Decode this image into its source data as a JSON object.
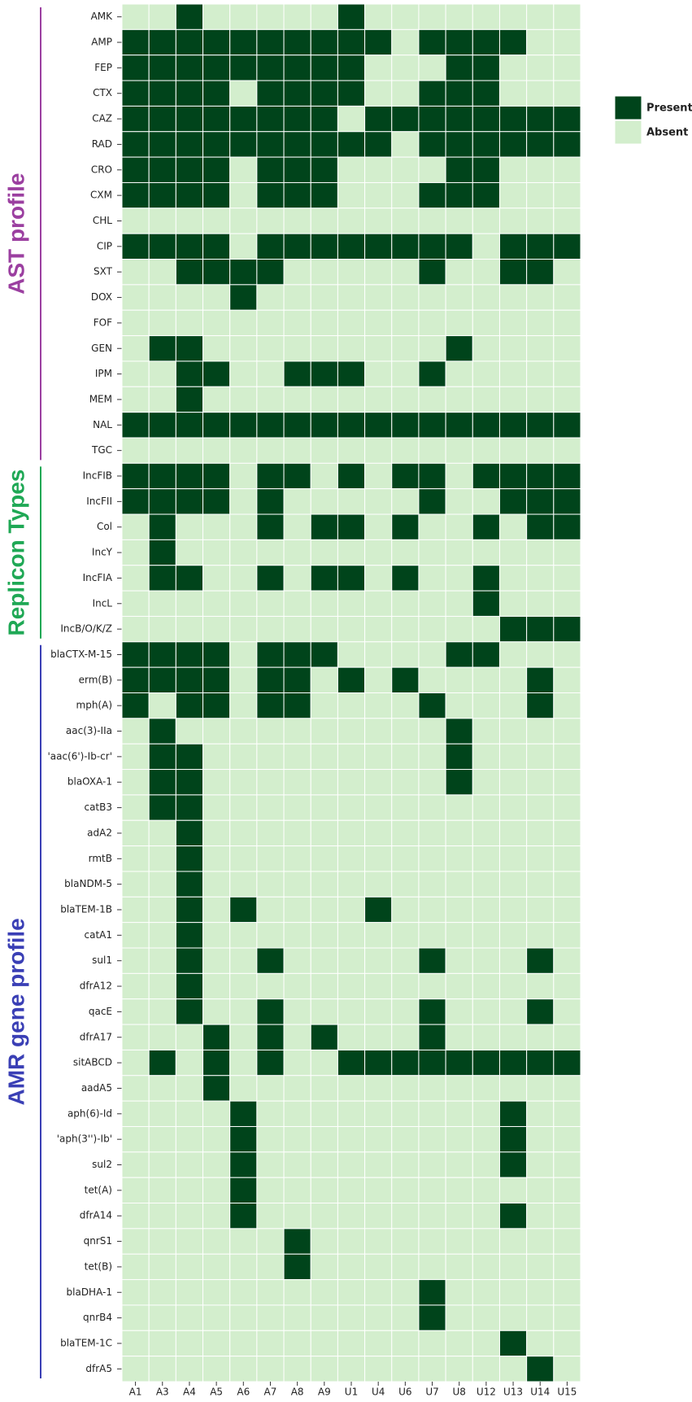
{
  "chart_data": {
    "type": "heatmap",
    "categories": [
      "A1",
      "A3",
      "A4",
      "A5",
      "A6",
      "A7",
      "A8",
      "A9",
      "U1",
      "U4",
      "U6",
      "U7",
      "U8",
      "U12",
      "U13",
      "U14",
      "U15"
    ],
    "legend": [
      {
        "label": "Present",
        "value": 1,
        "color": "#00441b"
      },
      {
        "label": "Absent",
        "value": 0,
        "color": "#d3eecd"
      }
    ],
    "groups": [
      {
        "name": "AST profile",
        "color": "#9b3fa0",
        "rows": [
          "AMK",
          "AMP",
          "FEP",
          "CTX",
          "CAZ",
          "RAD",
          "CRO",
          "CXM",
          "CHL",
          "CIP",
          "SXT",
          "DOX",
          "FOF",
          "GEN",
          "IPM",
          "MEM",
          "NAL",
          "TGC"
        ],
        "values": [
          [
            0,
            0,
            1,
            0,
            0,
            0,
            0,
            0,
            1,
            0,
            0,
            0,
            0,
            0,
            0,
            0,
            0
          ],
          [
            1,
            1,
            1,
            1,
            1,
            1,
            1,
            1,
            1,
            1,
            0,
            1,
            1,
            1,
            1,
            0,
            0
          ],
          [
            1,
            1,
            1,
            1,
            1,
            1,
            1,
            1,
            1,
            0,
            0,
            0,
            1,
            1,
            0,
            0,
            0
          ],
          [
            1,
            1,
            1,
            1,
            0,
            1,
            1,
            1,
            1,
            0,
            0,
            1,
            1,
            1,
            0,
            0,
            0
          ],
          [
            1,
            1,
            1,
            1,
            1,
            1,
            1,
            1,
            0,
            1,
            1,
            1,
            1,
            1,
            1,
            1,
            1
          ],
          [
            1,
            1,
            1,
            1,
            1,
            1,
            1,
            1,
            1,
            1,
            0,
            1,
            1,
            1,
            1,
            1,
            1
          ],
          [
            1,
            1,
            1,
            1,
            0,
            1,
            1,
            1,
            0,
            0,
            0,
            0,
            1,
            1,
            0,
            0,
            0
          ],
          [
            1,
            1,
            1,
            1,
            0,
            1,
            1,
            1,
            0,
            0,
            0,
            1,
            1,
            1,
            0,
            0,
            0
          ],
          [
            0,
            0,
            0,
            0,
            0,
            0,
            0,
            0,
            0,
            0,
            0,
            0,
            0,
            0,
            0,
            0,
            0
          ],
          [
            1,
            1,
            1,
            1,
            0,
            1,
            1,
            1,
            1,
            1,
            1,
            1,
            1,
            0,
            1,
            1,
            1
          ],
          [
            0,
            0,
            1,
            1,
            1,
            1,
            0,
            0,
            0,
            0,
            0,
            1,
            0,
            0,
            1,
            1,
            0
          ],
          [
            0,
            0,
            0,
            0,
            1,
            0,
            0,
            0,
            0,
            0,
            0,
            0,
            0,
            0,
            0,
            0,
            0
          ],
          [
            0,
            0,
            0,
            0,
            0,
            0,
            0,
            0,
            0,
            0,
            0,
            0,
            0,
            0,
            0,
            0,
            0
          ],
          [
            0,
            1,
            1,
            0,
            0,
            0,
            0,
            0,
            0,
            0,
            0,
            0,
            1,
            0,
            0,
            0,
            0
          ],
          [
            0,
            0,
            1,
            1,
            0,
            0,
            1,
            1,
            1,
            0,
            0,
            1,
            0,
            0,
            0,
            0,
            0
          ],
          [
            0,
            0,
            1,
            0,
            0,
            0,
            0,
            0,
            0,
            0,
            0,
            0,
            0,
            0,
            0,
            0,
            0
          ],
          [
            1,
            1,
            1,
            1,
            1,
            1,
            1,
            1,
            1,
            1,
            1,
            1,
            1,
            1,
            1,
            1,
            1
          ],
          [
            0,
            0,
            0,
            0,
            0,
            0,
            0,
            0,
            0,
            0,
            0,
            0,
            0,
            0,
            0,
            0,
            0
          ]
        ]
      },
      {
        "name": "Replicon Types",
        "color": "#1fa855",
        "rows": [
          "IncFIB",
          "IncFII",
          "Col",
          "IncY",
          "IncFIA",
          "IncL",
          "IncB/O/K/Z"
        ],
        "values": [
          [
            1,
            1,
            1,
            1,
            0,
            1,
            1,
            0,
            1,
            0,
            1,
            1,
            0,
            1,
            1,
            1,
            1
          ],
          [
            1,
            1,
            1,
            1,
            0,
            1,
            0,
            0,
            0,
            0,
            0,
            1,
            0,
            0,
            1,
            1,
            1
          ],
          [
            0,
            1,
            0,
            0,
            0,
            1,
            0,
            1,
            1,
            0,
            1,
            0,
            0,
            1,
            0,
            1,
            1
          ],
          [
            0,
            1,
            0,
            0,
            0,
            0,
            0,
            0,
            0,
            0,
            0,
            0,
            0,
            0,
            0,
            0,
            0
          ],
          [
            0,
            1,
            1,
            0,
            0,
            1,
            0,
            1,
            1,
            0,
            1,
            0,
            0,
            1,
            0,
            0,
            0
          ],
          [
            0,
            0,
            0,
            0,
            0,
            0,
            0,
            0,
            0,
            0,
            0,
            0,
            0,
            1,
            0,
            0,
            0
          ],
          [
            0,
            0,
            0,
            0,
            0,
            0,
            0,
            0,
            0,
            0,
            0,
            0,
            0,
            0,
            1,
            1,
            1
          ]
        ]
      },
      {
        "name": "AMR gene profile",
        "color": "#3a3fb5",
        "rows": [
          "blaCTX-M-15",
          "erm(B)",
          "mph(A)",
          "aac(3)-IIa",
          "'aac(6')-Ib-cr'",
          "blaOXA-1",
          "catB3",
          "adA2",
          "rmtB",
          "blaNDM-5",
          "blaTEM-1B",
          "catA1",
          "sul1",
          "dfrA12",
          "qacE",
          "dfrA17",
          "sitABCD",
          "aadA5",
          "aph(6)-Id",
          "'aph(3'')-Ib'",
          "sul2",
          "tet(A)",
          "dfrA14",
          "qnrS1",
          "tet(B)",
          "blaDHA-1",
          "qnrB4",
          "blaTEM-1C",
          "dfrA5"
        ],
        "values": [
          [
            1,
            1,
            1,
            1,
            0,
            1,
            1,
            1,
            0,
            0,
            0,
            0,
            1,
            1,
            0,
            0,
            0
          ],
          [
            1,
            1,
            1,
            1,
            0,
            1,
            1,
            0,
            1,
            0,
            1,
            0,
            0,
            0,
            0,
            1,
            0
          ],
          [
            1,
            0,
            1,
            1,
            0,
            1,
            1,
            0,
            0,
            0,
            0,
            1,
            0,
            0,
            0,
            1,
            0
          ],
          [
            0,
            1,
            0,
            0,
            0,
            0,
            0,
            0,
            0,
            0,
            0,
            0,
            1,
            0,
            0,
            0,
            0
          ],
          [
            0,
            1,
            1,
            0,
            0,
            0,
            0,
            0,
            0,
            0,
            0,
            0,
            1,
            0,
            0,
            0,
            0
          ],
          [
            0,
            1,
            1,
            0,
            0,
            0,
            0,
            0,
            0,
            0,
            0,
            0,
            1,
            0,
            0,
            0,
            0
          ],
          [
            0,
            1,
            1,
            0,
            0,
            0,
            0,
            0,
            0,
            0,
            0,
            0,
            0,
            0,
            0,
            0,
            0
          ],
          [
            0,
            0,
            1,
            0,
            0,
            0,
            0,
            0,
            0,
            0,
            0,
            0,
            0,
            0,
            0,
            0,
            0
          ],
          [
            0,
            0,
            1,
            0,
            0,
            0,
            0,
            0,
            0,
            0,
            0,
            0,
            0,
            0,
            0,
            0,
            0
          ],
          [
            0,
            0,
            1,
            0,
            0,
            0,
            0,
            0,
            0,
            0,
            0,
            0,
            0,
            0,
            0,
            0,
            0
          ],
          [
            0,
            0,
            1,
            0,
            1,
            0,
            0,
            0,
            0,
            1,
            0,
            0,
            0,
            0,
            0,
            0,
            0
          ],
          [
            0,
            0,
            1,
            0,
            0,
            0,
            0,
            0,
            0,
            0,
            0,
            0,
            0,
            0,
            0,
            0,
            0
          ],
          [
            0,
            0,
            1,
            0,
            0,
            1,
            0,
            0,
            0,
            0,
            0,
            1,
            0,
            0,
            0,
            1,
            0
          ],
          [
            0,
            0,
            1,
            0,
            0,
            0,
            0,
            0,
            0,
            0,
            0,
            0,
            0,
            0,
            0,
            0,
            0
          ],
          [
            0,
            0,
            1,
            0,
            0,
            1,
            0,
            0,
            0,
            0,
            0,
            1,
            0,
            0,
            0,
            1,
            0
          ],
          [
            0,
            0,
            0,
            1,
            0,
            1,
            0,
            1,
            0,
            0,
            0,
            1,
            0,
            0,
            0,
            0,
            0
          ],
          [
            0,
            1,
            0,
            1,
            0,
            1,
            0,
            0,
            1,
            1,
            1,
            1,
            1,
            1,
            1,
            1,
            1
          ],
          [
            0,
            0,
            0,
            1,
            0,
            0,
            0,
            0,
            0,
            0,
            0,
            0,
            0,
            0,
            0,
            0,
            0
          ],
          [
            0,
            0,
            0,
            0,
            1,
            0,
            0,
            0,
            0,
            0,
            0,
            0,
            0,
            0,
            1,
            0,
            0
          ],
          [
            0,
            0,
            0,
            0,
            1,
            0,
            0,
            0,
            0,
            0,
            0,
            0,
            0,
            0,
            1,
            0,
            0
          ],
          [
            0,
            0,
            0,
            0,
            1,
            0,
            0,
            0,
            0,
            0,
            0,
            0,
            0,
            0,
            1,
            0,
            0
          ],
          [
            0,
            0,
            0,
            0,
            1,
            0,
            0,
            0,
            0,
            0,
            0,
            0,
            0,
            0,
            0,
            0,
            0
          ],
          [
            0,
            0,
            0,
            0,
            1,
            0,
            0,
            0,
            0,
            0,
            0,
            0,
            0,
            0,
            1,
            0,
            0
          ],
          [
            0,
            0,
            0,
            0,
            0,
            0,
            1,
            0,
            0,
            0,
            0,
            0,
            0,
            0,
            0,
            0,
            0
          ],
          [
            0,
            0,
            0,
            0,
            0,
            0,
            1,
            0,
            0,
            0,
            0,
            0,
            0,
            0,
            0,
            0,
            0
          ],
          [
            0,
            0,
            0,
            0,
            0,
            0,
            0,
            0,
            0,
            0,
            0,
            1,
            0,
            0,
            0,
            0,
            0
          ],
          [
            0,
            0,
            0,
            0,
            0,
            0,
            0,
            0,
            0,
            0,
            0,
            1,
            0,
            0,
            0,
            0,
            0
          ],
          [
            0,
            0,
            0,
            0,
            0,
            0,
            0,
            0,
            0,
            0,
            0,
            0,
            0,
            0,
            1,
            0,
            0
          ],
          [
            0,
            0,
            0,
            0,
            0,
            0,
            0,
            0,
            0,
            0,
            0,
            0,
            0,
            0,
            0,
            1,
            0
          ]
        ]
      }
    ]
  }
}
